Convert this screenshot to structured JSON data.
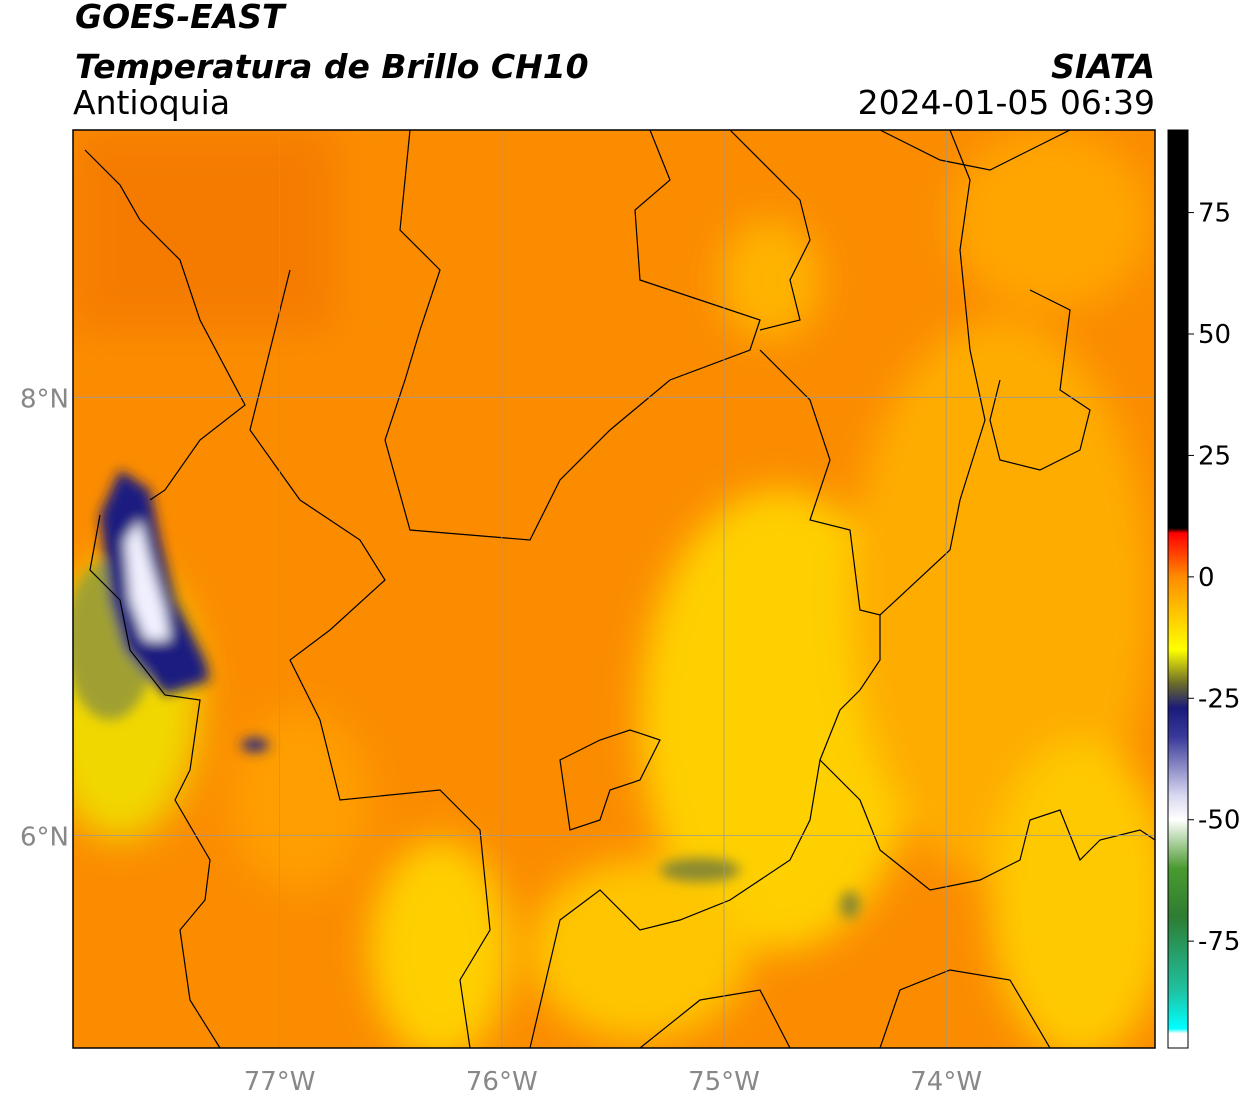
{
  "header": {
    "title": "GOES-EAST",
    "subtitle": "Temperatura de Brillo CH10",
    "region": "Antioquia",
    "source": "SIATA",
    "timestamp": "2024-01-05 06:39"
  },
  "map": {
    "lon_lim": [
      -77.93,
      -73.06
    ],
    "lat_lim": [
      5.03,
      9.22
    ],
    "lon_ticks": [
      {
        "value": -77,
        "label": "77°W"
      },
      {
        "value": -76,
        "label": "76°W"
      },
      {
        "value": -75,
        "label": "75°W"
      },
      {
        "value": -74,
        "label": "74°W"
      }
    ],
    "lat_ticks": [
      {
        "value": 8,
        "label": "8°N"
      },
      {
        "value": 6,
        "label": "6°N"
      }
    ]
  },
  "colorbar": {
    "lim": [
      -97,
      92
    ],
    "ticks": [
      75,
      50,
      25,
      0,
      -25,
      -50,
      -75
    ],
    "colors": [
      {
        "value": 92,
        "color": "#000000"
      },
      {
        "value": 10,
        "color": "#000000"
      },
      {
        "value": 9,
        "color": "#ff0000"
      },
      {
        "value": 0,
        "color": "#ff8c00"
      },
      {
        "value": -15,
        "color": "#ffff00"
      },
      {
        "value": -22,
        "color": "#6b6b2a"
      },
      {
        "value": -27,
        "color": "#1a1a7a"
      },
      {
        "value": -33,
        "color": "#3a3a9a"
      },
      {
        "value": -45,
        "color": "#d8d8f0"
      },
      {
        "value": -50,
        "color": "#ffffff"
      },
      {
        "value": -60,
        "color": "#4a9a30"
      },
      {
        "value": -70,
        "color": "#2e7d32"
      },
      {
        "value": -85,
        "color": "#20c0a0"
      },
      {
        "value": -93,
        "color": "#00ffff"
      },
      {
        "value": -94,
        "color": "#ffffff"
      }
    ]
  }
}
